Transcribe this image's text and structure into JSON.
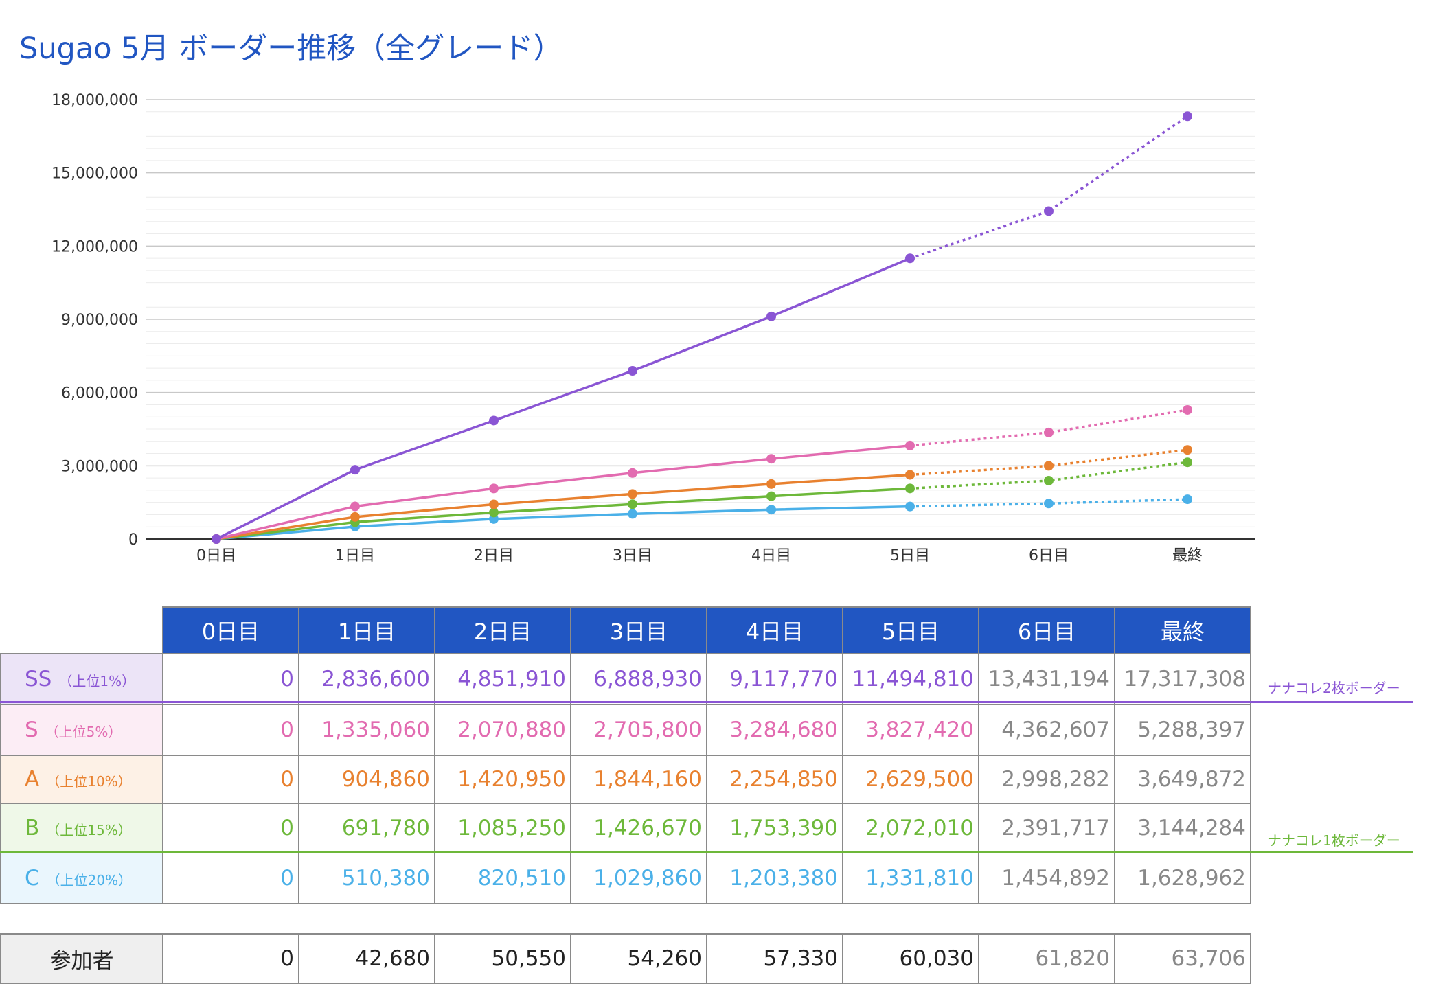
{
  "title": "Sugao 5月 ボーダー推移（全グレード）",
  "colors": {
    "header_bg": "#2156c2",
    "ss": "#8a55d4",
    "s": "#e26bb0",
    "a": "#e8812f",
    "b": "#6db83a",
    "c": "#4ab0e8",
    "projected": "#888888"
  },
  "chart_data": {
    "type": "line",
    "title": "Sugao 5月 ボーダー推移（全グレード）",
    "categories": [
      "0日目",
      "1日目",
      "2日目",
      "3日目",
      "4日目",
      "5日目",
      "6日目",
      "最終"
    ],
    "ylim": [
      0,
      18000000
    ],
    "yticks": [
      "0",
      "3,000,000",
      "6,000,000",
      "9,000,000",
      "12,000,000",
      "15,000,000",
      "18,000,000"
    ],
    "ytick_values": [
      0,
      3000000,
      6000000,
      9000000,
      12000000,
      15000000,
      18000000
    ],
    "grid": true,
    "solid_until_index": 5,
    "series": [
      {
        "key": "ss",
        "color": "#8a55d4",
        "values": [
          0,
          2836600,
          4851910,
          6888930,
          9117770,
          11494810,
          13431194,
          17317308
        ]
      },
      {
        "key": "s",
        "color": "#e26bb0",
        "values": [
          0,
          1335060,
          2070880,
          2705800,
          3284680,
          3827420,
          4362607,
          5288397
        ]
      },
      {
        "key": "a",
        "color": "#e8812f",
        "values": [
          0,
          904860,
          1420950,
          1844160,
          2254850,
          2629500,
          2998282,
          3649872
        ]
      },
      {
        "key": "b",
        "color": "#6db83a",
        "values": [
          0,
          691780,
          1085250,
          1426670,
          1753390,
          2072010,
          2391717,
          3144284
        ]
      },
      {
        "key": "c",
        "color": "#4ab0e8",
        "values": [
          0,
          510380,
          820510,
          1029860,
          1203380,
          1331810,
          1454892,
          1628962
        ]
      }
    ]
  },
  "table": {
    "headers": [
      "0日目",
      "1日目",
      "2日目",
      "3日目",
      "4日目",
      "5日目",
      "6日目",
      "最終"
    ],
    "rows": [
      {
        "name": "SS",
        "sub": "（上位1%）",
        "color": "#8a55d4",
        "bg": "#ece4f7",
        "values": [
          "0",
          "2,836,600",
          "4,851,910",
          "6,888,930",
          "9,117,770",
          "11,494,810",
          "13,431,194",
          "17,317,308"
        ]
      },
      {
        "name": "S",
        "sub": "（上位5%）",
        "color": "#e26bb0",
        "bg": "#fcedf5",
        "values": [
          "0",
          "1,335,060",
          "2,070,880",
          "2,705,800",
          "3,284,680",
          "3,827,420",
          "4,362,607",
          "5,288,397"
        ]
      },
      {
        "name": "A",
        "sub": "（上位10%）",
        "color": "#e8812f",
        "bg": "#fdf1e6",
        "values": [
          "0",
          "904,860",
          "1,420,950",
          "1,844,160",
          "2,254,850",
          "2,629,500",
          "2,998,282",
          "3,649,872"
        ]
      },
      {
        "name": "B",
        "sub": "（上位15%）",
        "color": "#6db83a",
        "bg": "#eff8e8",
        "values": [
          "0",
          "691,780",
          "1,085,250",
          "1,426,670",
          "1,753,390",
          "2,072,010",
          "2,391,717",
          "3,144,284"
        ]
      },
      {
        "name": "C",
        "sub": "（上位20%）",
        "color": "#4ab0e8",
        "bg": "#eaf6fd",
        "values": [
          "0",
          "510,380",
          "820,510",
          "1,029,860",
          "1,203,380",
          "1,331,810",
          "1,454,892",
          "1,628,962"
        ]
      }
    ],
    "participants": {
      "label": "参加者",
      "values": [
        "0",
        "42,680",
        "50,550",
        "54,260",
        "57,330",
        "60,030",
        "61,820",
        "63,706"
      ]
    }
  },
  "notes": {
    "two_card": "ナナコレ2枚ボーダー",
    "one_card": "ナナコレ1枚ボーダー"
  }
}
